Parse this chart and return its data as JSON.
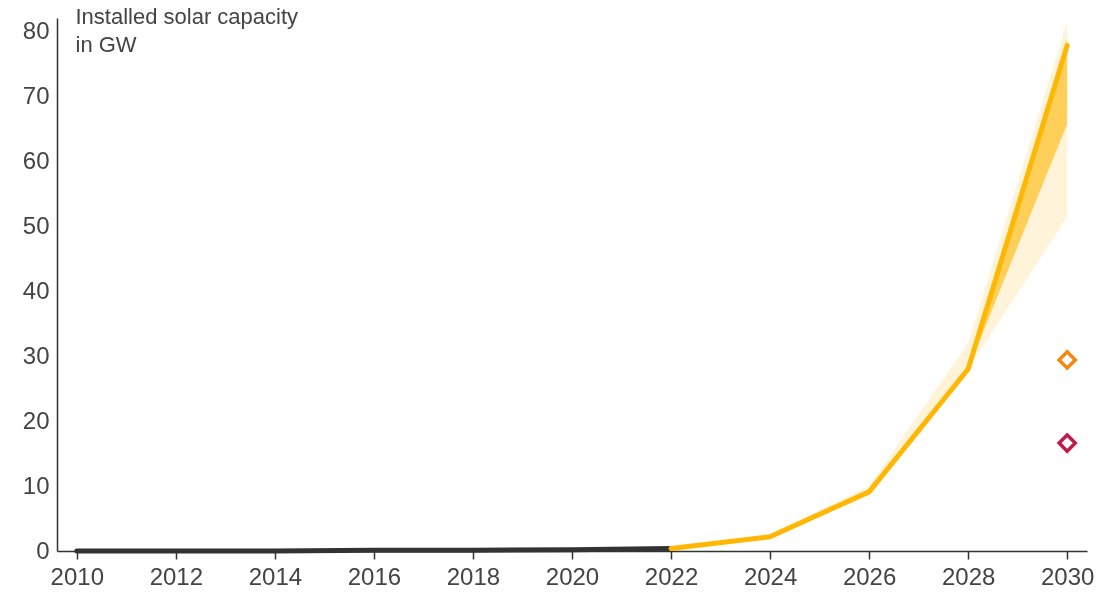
{
  "chart_data": {
    "type": "line",
    "ylabel": "Installed solar capacity\nin GW",
    "xlim": [
      2009.6,
      2030.4
    ],
    "xticks": [
      2010,
      2012,
      2014,
      2016,
      2018,
      2020,
      2022,
      2024,
      2026,
      2028,
      2030
    ],
    "ylim": [
      0,
      82
    ],
    "yticks": [
      0,
      10,
      20,
      30,
      40,
      50,
      60,
      70,
      80
    ],
    "grid": false,
    "marker": "none",
    "line_style": "solid",
    "series": [
      {
        "color": "#333333",
        "x": [
          2010,
          2012,
          2014,
          2016,
          2018,
          2020,
          2022
        ],
        "values": [
          0,
          0,
          0,
          0.1,
          0.1,
          0.2,
          0.4
        ]
      },
      {
        "color": "#ffedc0",
        "x": [
          2022,
          2024,
          2026,
          2028,
          2030
        ],
        "values": [
          null,
          null,
          null,
          null,
          null
        ],
        "lower": [
          0.4,
          2.2,
          9.0,
          28.0,
          51.4
        ],
        "upper": [
          0.4,
          2.6,
          10.0,
          32.0,
          81.5
        ]
      },
      {
        "color": "#ffb703",
        "x": [
          2022,
          2024,
          2026,
          2028,
          2030
        ],
        "values": [
          0.4,
          2.2,
          9.1,
          28.0,
          77.8
        ],
        "lower": [
          0.4,
          2.2,
          9.1,
          28.0,
          65.7
        ],
        "upper": [
          0.4,
          2.2,
          9.1,
          28.0,
          78.8
        ]
      },
      {
        "type": "scatter",
        "color": "#f08a10",
        "marker": "diamond",
        "x": [
          2030
        ],
        "values": [
          29.4
        ]
      },
      {
        "type": "scatter",
        "color": "#c01c4a",
        "marker": "diamond",
        "x": [
          2030
        ],
        "values": [
          16.6
        ]
      }
    ]
  }
}
